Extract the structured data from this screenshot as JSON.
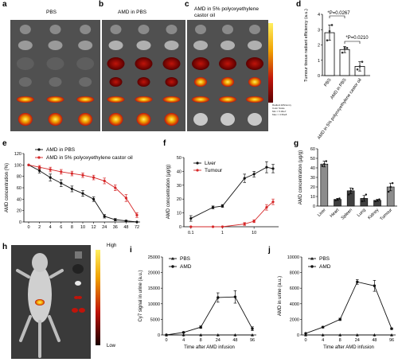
{
  "panel_labels": {
    "a": "a",
    "b": "b",
    "c": "c",
    "d": "d",
    "e": "e",
    "f": "f",
    "g": "g",
    "h": "h",
    "i": "i",
    "j": "j"
  },
  "panel_titles": {
    "a": "PBS",
    "b": "AMD in PBS",
    "c": "AMD in 5% polyoxyethylene castor oil"
  },
  "colors": {
    "hot_dark": "#5a0000",
    "hot_mid": "#c0140a",
    "hot_hot": "#f0a000",
    "hot_light": "#fff060",
    "tissue_bg": "#505050",
    "black": "#111111",
    "red": "#d62728",
    "gray_bar": "#8c8c8c",
    "dark_bar": "#404040"
  },
  "heatmap_scale": {
    "labels": [
      "Radiant Efficiency",
      "Color Scale",
      "Min = 5.00e7",
      "Max = 3.50e8"
    ]
  },
  "mouse_scale": {
    "high": "High",
    "low": "Low"
  },
  "chart_data": [
    {
      "id": "d",
      "type": "bar",
      "categories": [
        "PBS",
        "AMD in PBS",
        "AMD in 5% polyoxyethylene castor oil"
      ],
      "values": [
        2.8,
        1.7,
        0.6
      ],
      "points": [
        [
          2.3,
          2.9,
          3.3
        ],
        [
          1.5,
          1.8,
          1.8
        ],
        [
          0.4,
          0.6,
          0.9
        ]
      ],
      "errors": [
        0.5,
        0.2,
        0.3
      ],
      "ylabel": "Tumour tissue radiant efficiency (a.u.)",
      "ylim": [
        0,
        4
      ],
      "yticks": [
        0,
        1,
        2,
        3,
        4
      ],
      "annotations": [
        "*P=0.0267",
        "*P=0.0210"
      ]
    },
    {
      "id": "e",
      "type": "line",
      "x": [
        0,
        2,
        4,
        6,
        8,
        10,
        12,
        24,
        36,
        48,
        72
      ],
      "series": [
        {
          "name": "AMD in PBS",
          "values": [
            100,
            90,
            78,
            68,
            58,
            50,
            40,
            10,
            4,
            2,
            0
          ],
          "errors": [
            0,
            4,
            6,
            6,
            5,
            5,
            4,
            3,
            2,
            1,
            0
          ],
          "color": "#111111"
        },
        {
          "name": "AMD in 5% polyoxyethylene castor oil",
          "values": [
            100,
            96,
            92,
            88,
            85,
            82,
            78,
            72,
            60,
            42,
            12
          ],
          "errors": [
            0,
            3,
            4,
            4,
            4,
            4,
            4,
            5,
            5,
            6,
            4
          ],
          "color": "#d62728"
        }
      ],
      "xlabel": "",
      "ylabel": "AMD concentration (%)",
      "ylim": [
        0,
        120
      ],
      "yticks": [
        0,
        20,
        40,
        60,
        80,
        100,
        120
      ]
    },
    {
      "id": "f",
      "type": "line",
      "xscale": "log",
      "x": [
        0.1,
        0.5,
        1,
        5,
        10,
        25,
        40
      ],
      "series": [
        {
          "name": "Liver",
          "values": [
            6,
            14,
            15,
            35,
            38,
            43,
            42
          ],
          "errors": [
            2,
            1,
            1,
            3,
            2,
            4,
            3
          ],
          "color": "#111111"
        },
        {
          "name": "Tumour",
          "values": [
            0,
            0,
            0,
            2,
            4,
            14,
            18
          ],
          "errors": [
            0,
            0,
            0,
            1,
            1,
            2,
            2
          ],
          "color": "#d62728"
        }
      ],
      "xlabel": "",
      "ylabel": "AMD concentration (µg/g)",
      "ylim": [
        0,
        50
      ],
      "yticks": [
        0,
        10,
        20,
        30,
        40,
        50
      ],
      "xticks": [
        "0.1",
        "1",
        "10"
      ]
    },
    {
      "id": "g",
      "type": "bar",
      "categories": [
        "Liver",
        "Heart",
        "Spleen",
        "Lung",
        "Kidney",
        "Tumour"
      ],
      "values": [
        44,
        7,
        16,
        8,
        6,
        20
      ],
      "points": [
        [
          42,
          44,
          47
        ],
        [
          6,
          7,
          8
        ],
        [
          12,
          16,
          18
        ],
        [
          5,
          8,
          12
        ],
        [
          5,
          6,
          7
        ],
        [
          15,
          20,
          24
        ]
      ],
      "errors": [
        3,
        1,
        3,
        3,
        1,
        4
      ],
      "ylabel": "AMD concentration (µg/g)",
      "ylim": [
        0,
        60
      ],
      "yticks": [
        0,
        10,
        20,
        30,
        40,
        50,
        60
      ]
    },
    {
      "id": "i",
      "type": "line",
      "x": [
        "0",
        "4",
        "8",
        "24",
        "48",
        "96"
      ],
      "series": [
        {
          "name": "PBS",
          "values": [
            0,
            0,
            0,
            0,
            0,
            0
          ],
          "errors": [
            0,
            0,
            0,
            0,
            0,
            0
          ],
          "color": "#111111"
        },
        {
          "name": "AMD",
          "values": [
            0,
            800,
            2500,
            12000,
            12200,
            2000
          ],
          "errors": [
            0,
            200,
            400,
            1500,
            2000,
            600
          ],
          "color": "#111111"
        }
      ],
      "xlabel": "Time after AMD infusion",
      "ylabel": "Cy7 signal in urine (a.u.)",
      "ylim": [
        0,
        25000
      ],
      "yticks": [
        0,
        5000,
        10000,
        15000,
        20000,
        25000
      ]
    },
    {
      "id": "j",
      "type": "line",
      "x": [
        "0",
        "4",
        "8",
        "24",
        "48",
        "96"
      ],
      "series": [
        {
          "name": "PBS",
          "values": [
            0,
            0,
            0,
            0,
            0,
            0
          ],
          "errors": [
            0,
            0,
            0,
            0,
            0,
            0
          ],
          "color": "#111111"
        },
        {
          "name": "AMD",
          "values": [
            200,
            1000,
            2000,
            6800,
            6300,
            800
          ],
          "errors": [
            0,
            100,
            150,
            300,
            700,
            100
          ],
          "color": "#111111"
        }
      ],
      "xlabel": "Time after AMD infusion",
      "ylabel": "AMD in urine (a.u.)",
      "ylim": [
        0,
        10000
      ],
      "yticks": [
        0,
        2000,
        4000,
        6000,
        8000,
        10000
      ]
    }
  ]
}
